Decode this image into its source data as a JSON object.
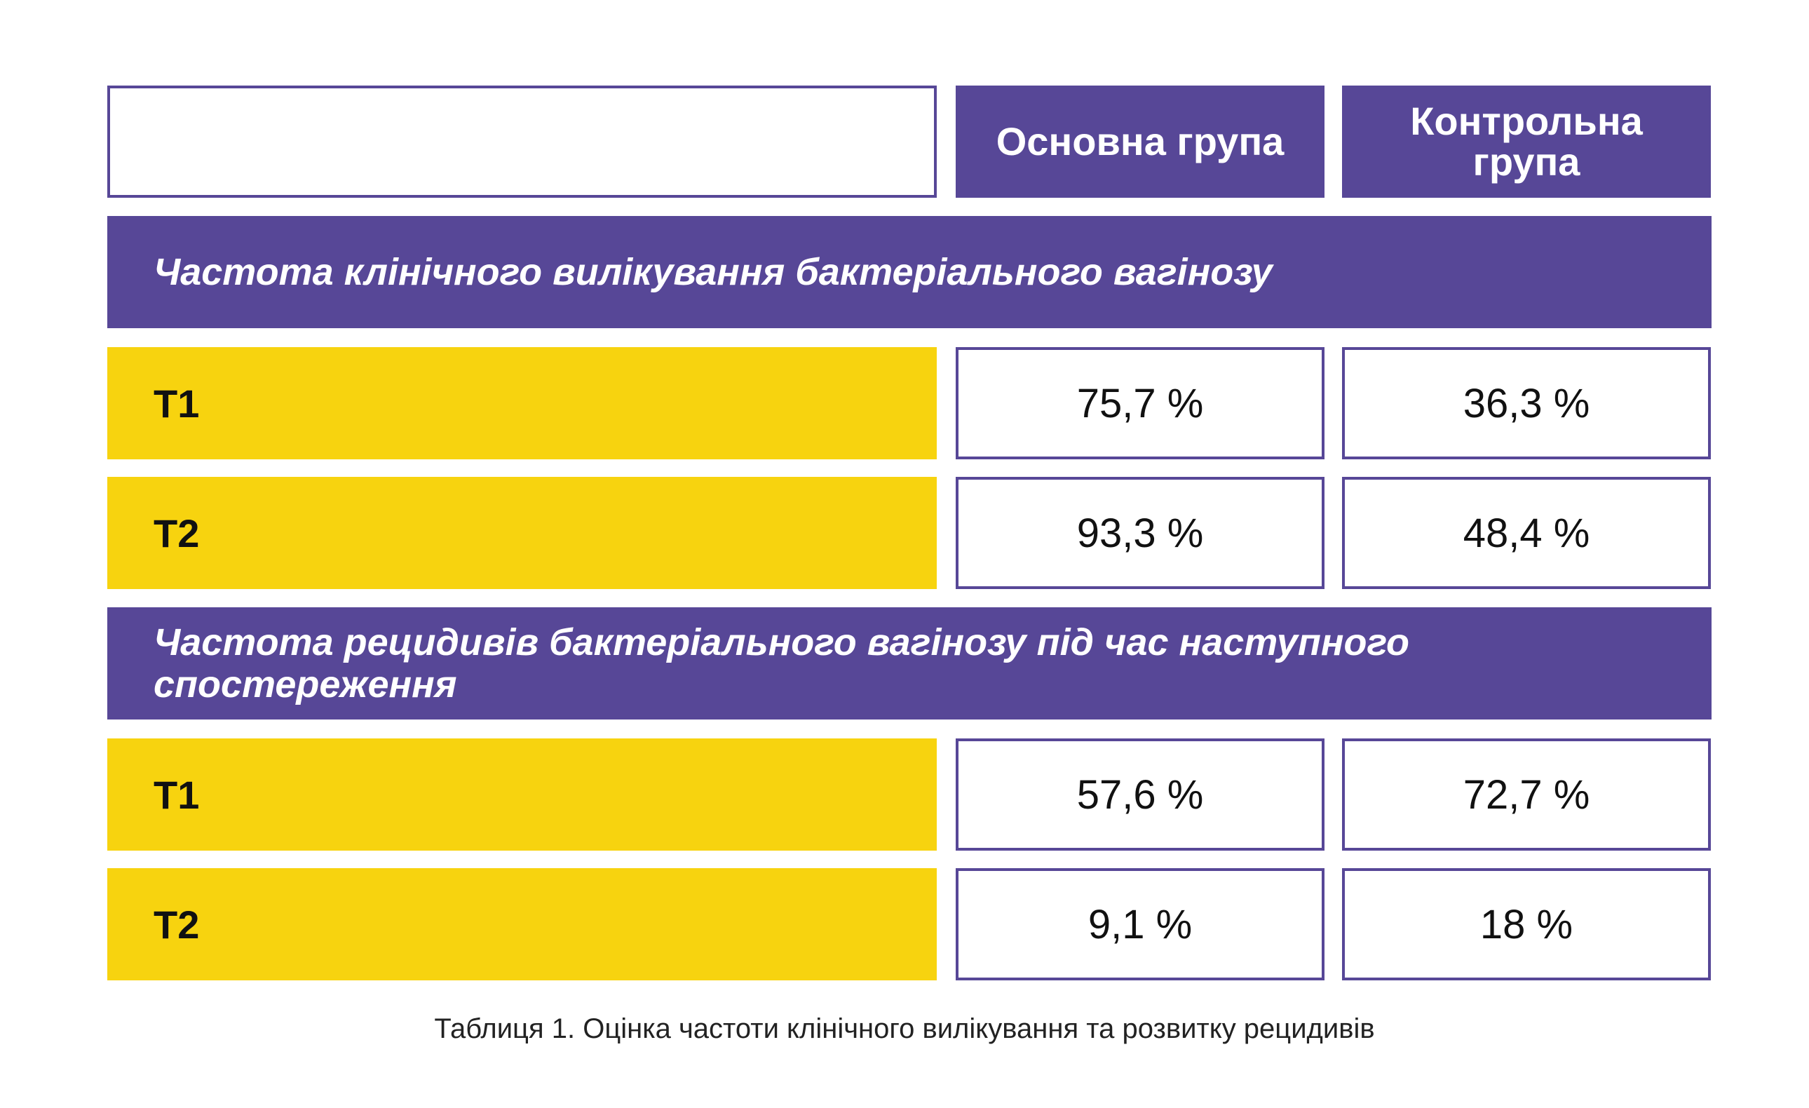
{
  "header": {
    "main_group": "Основна група",
    "control_group": "Контрольна група"
  },
  "sections": [
    {
      "title": "Частота клінічного вилікування бактеріального вагінозу",
      "rows": [
        {
          "label": "Т1",
          "main": "75,7 %",
          "control": "36,3 %"
        },
        {
          "label": "Т2",
          "main": "93,3 %",
          "control": "48,4 %"
        }
      ]
    },
    {
      "title": "Частота рецидивів бактеріального вагінозу під час наступного спостереження",
      "rows": [
        {
          "label": "Т1",
          "main": "57,6 %",
          "control": "72,7 %"
        },
        {
          "label": "Т2",
          "main": "9,1 %",
          "control": "18 %"
        }
      ]
    }
  ],
  "caption": "Таблиця 1. Оцінка частоти клінічного вилікування та розвитку рецидивів",
  "colors": {
    "purple": "#574797",
    "yellow": "#f7d30f"
  }
}
